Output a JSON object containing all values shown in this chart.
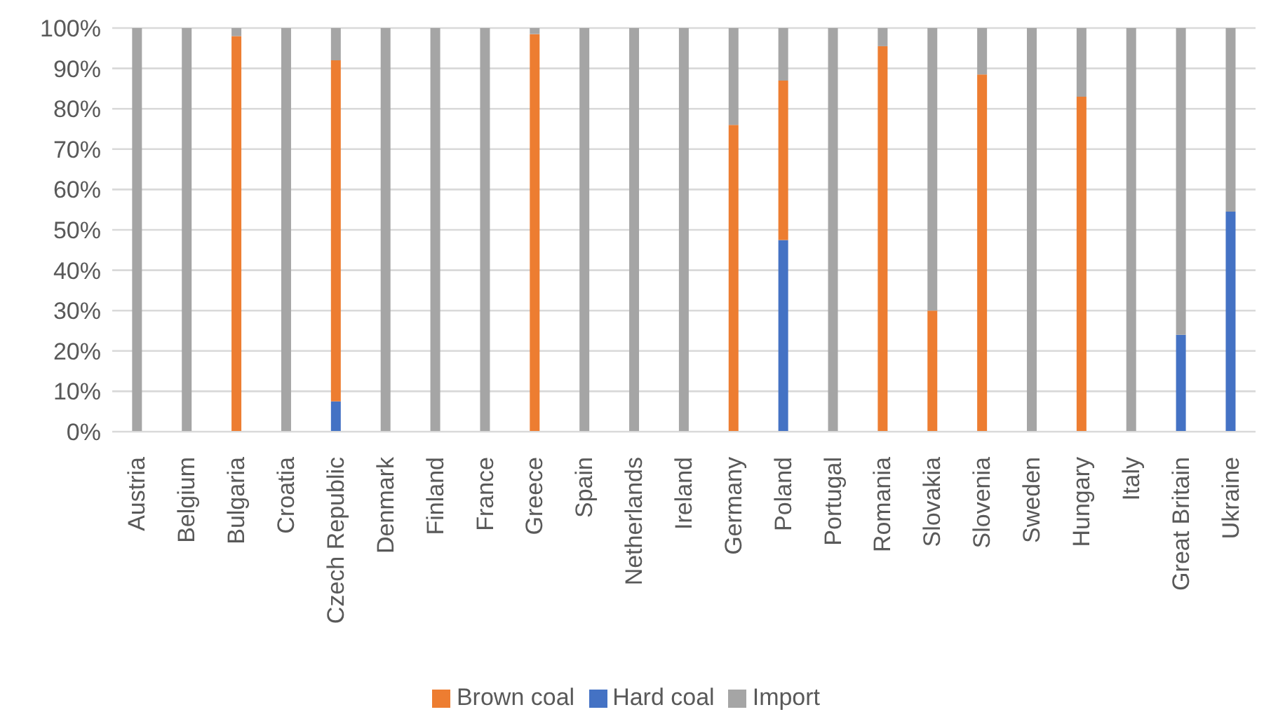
{
  "chart_data": {
    "type": "bar",
    "stacked": true,
    "categories": [
      "Austria",
      "Belgium",
      "Bulgaria",
      "Croatia",
      "Czech Republic",
      "Denmark",
      "Finland",
      "France",
      "Greece",
      "Spain",
      "Netherlands",
      "Ireland",
      "Germany",
      "Poland",
      "Portugal",
      "Romania",
      "Slovakia",
      "Slovenia",
      "Sweden",
      "Hungary",
      "Italy",
      "Great Britain",
      "Ukraine"
    ],
    "series": [
      {
        "name": "Hard coal",
        "color": "#4472c4",
        "values": [
          0,
          0,
          0,
          0,
          7.5,
          0,
          0,
          0,
          0,
          0,
          0,
          0,
          0,
          47.5,
          0,
          0,
          0,
          0,
          0,
          0,
          0,
          24,
          54.5
        ]
      },
      {
        "name": "Brown coal",
        "color": "#ed7d31",
        "values": [
          0,
          0,
          98,
          0,
          84.5,
          0,
          0,
          0,
          98.5,
          0,
          0,
          0,
          76,
          39.5,
          0,
          95.5,
          30,
          88.5,
          0,
          83,
          0,
          0,
          0
        ]
      },
      {
        "name": "Import",
        "color": "#a5a5a5",
        "values": [
          100,
          100,
          2,
          100,
          8,
          100,
          100,
          100,
          1.5,
          100,
          100,
          100,
          24,
          13,
          100,
          4.5,
          70,
          11.5,
          100,
          17,
          100,
          76,
          45.5
        ]
      }
    ],
    "ylim": [
      0,
      100
    ],
    "yticks": [
      {
        "value": 0,
        "label": "0%"
      },
      {
        "value": 10,
        "label": "10%"
      },
      {
        "value": 20,
        "label": "20%"
      },
      {
        "value": 30,
        "label": "30%"
      },
      {
        "value": 40,
        "label": "40%"
      },
      {
        "value": 50,
        "label": "50%"
      },
      {
        "value": 60,
        "label": "60%"
      },
      {
        "value": 70,
        "label": "70%"
      },
      {
        "value": 80,
        "label": "80%"
      },
      {
        "value": 90,
        "label": "90%"
      },
      {
        "value": 100,
        "label": "100%"
      }
    ],
    "grid": "y",
    "legend": "bottom"
  }
}
